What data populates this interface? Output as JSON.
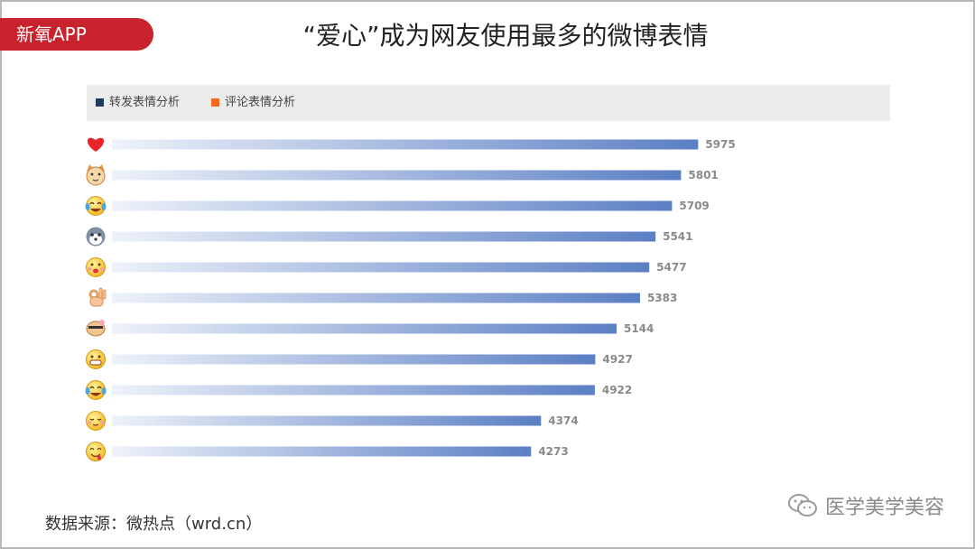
{
  "header": {
    "brand": "新氧APP",
    "title": "“爱心”成为网友使用最多的微博表情"
  },
  "legend": [
    {
      "label": "转发表情分析",
      "color": "#1f3a5f"
    },
    {
      "label": "评论表情分析",
      "color": "#f26a1b"
    }
  ],
  "colors": {
    "bar_end": "#5b7fc4",
    "bar_start": "#eef2fa",
    "label": "#8a8a8a"
  },
  "chart_data": {
    "type": "bar",
    "orientation": "horizontal",
    "categories": [
      "heart-emoji",
      "cat-face-emoji",
      "crying-emoji",
      "husky-emoji",
      "kiss-emoji",
      "ok-hand-emoji",
      "doge-emoji",
      "grin-emoji",
      "tears-of-joy-emoji",
      "shy-smile-emoji",
      "drooling-emoji"
    ],
    "values": [
      5975,
      5801,
      5709,
      5541,
      5477,
      5383,
      5144,
      4927,
      4922,
      4374,
      4273
    ],
    "xlim": [
      0,
      6000
    ],
    "grid": false,
    "legend_position": "top-left"
  },
  "footer": {
    "source": "数据来源：微热点（wrd.cn）",
    "watermark": "医学美学美容"
  }
}
